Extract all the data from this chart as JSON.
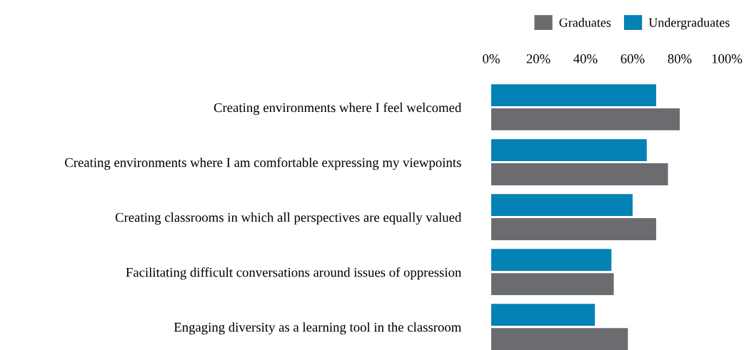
{
  "chart_data": {
    "type": "bar",
    "orientation": "horizontal",
    "categories": [
      "Creating environments where I feel welcomed",
      "Creating environments where I am comfortable expressing my viewpoints",
      "Creating classrooms in which all perspectives are equally valued",
      "Facilitating difficult conversations around issues of oppression",
      "Engaging diversity as a learning tool in the classroom"
    ],
    "series": [
      {
        "name": "Graduates",
        "color": "#6b6c70",
        "values": [
          80,
          75,
          70,
          52,
          58
        ]
      },
      {
        "name": "Undergraduates",
        "color": "#0282b5",
        "values": [
          70,
          66,
          60,
          51,
          44
        ]
      }
    ],
    "xlim": [
      0,
      100
    ],
    "xticks": [
      {
        "value": 0,
        "label": "0%"
      },
      {
        "value": 20,
        "label": "20%"
      },
      {
        "value": 40,
        "label": "40%"
      },
      {
        "value": 60,
        "label": "60%"
      },
      {
        "value": 80,
        "label": "80%"
      },
      {
        "value": 100,
        "label": "100%"
      }
    ],
    "grid": false,
    "legend": "top right"
  }
}
